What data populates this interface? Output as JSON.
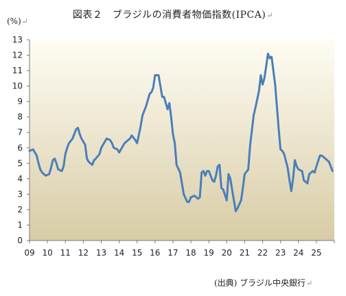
{
  "title": "図表２　ブラジルの消費者物価指数(IPCA)",
  "unit_label": "(%)",
  "source": "(出典) ブラジル中央銀行",
  "return_mark": "↵",
  "colors": {
    "line": "#4a7ebb",
    "bg_top": "#fffdf4",
    "bg_bottom": "#d8cca6",
    "axis": "#777777"
  },
  "chart_data": {
    "type": "line",
    "title": "図表２　ブラジルの消費者物価指数(IPCA)",
    "xlabel": "",
    "ylabel": "(%)",
    "ylim": [
      0,
      13
    ],
    "xlim": [
      2009.0,
      2026.0
    ],
    "yticks": [
      0,
      1,
      2,
      3,
      4,
      5,
      6,
      7,
      8,
      9,
      10,
      11,
      12,
      13
    ],
    "xtick_labels": [
      "09",
      "10",
      "11",
      "12",
      "13",
      "14",
      "15",
      "16",
      "17",
      "18",
      "19",
      "20",
      "21",
      "22",
      "23",
      "24",
      "25"
    ],
    "grid": false,
    "series": [
      {
        "name": "",
        "x": [
          2009.0,
          2009.2,
          2009.4,
          2009.5,
          2009.6,
          2009.7,
          2009.9,
          2010.1,
          2010.2,
          2010.3,
          2010.4,
          2010.5,
          2010.6,
          2010.8,
          2010.9,
          2011.0,
          2011.1,
          2011.2,
          2011.4,
          2011.6,
          2011.7,
          2011.8,
          2011.9,
          2012.1,
          2012.2,
          2012.3,
          2012.5,
          2012.6,
          2012.7,
          2012.9,
          2013.0,
          2013.2,
          2013.3,
          2013.5,
          2013.6,
          2013.7,
          2013.9,
          2014.0,
          2014.1,
          2014.3,
          2014.5,
          2014.6,
          2014.7,
          2014.9,
          2015.0,
          2015.2,
          2015.3,
          2015.5,
          2015.7,
          2015.8,
          2015.9,
          2016.0,
          2016.2,
          2016.4,
          2016.5,
          2016.7,
          2016.8,
          2016.9,
          2017.0,
          2017.1,
          2017.2,
          2017.4,
          2017.5,
          2017.6,
          2017.8,
          2017.9,
          2018.0,
          2018.2,
          2018.3,
          2018.4,
          2018.5,
          2018.6,
          2018.7,
          2018.8,
          2018.9,
          2019.0,
          2019.2,
          2019.3,
          2019.4,
          2019.5,
          2019.6,
          2019.7,
          2019.8,
          2020.0,
          2020.1,
          2020.2,
          2020.3,
          2020.5,
          2020.6,
          2020.8,
          2020.9,
          2021.0,
          2021.2,
          2021.3,
          2021.5,
          2021.6,
          2021.8,
          2021.9,
          2022.0,
          2022.1,
          2022.2,
          2022.3,
          2022.4,
          2022.5,
          2022.7,
          2022.9,
          2023.0,
          2023.1,
          2023.2,
          2023.4,
          2023.5,
          2023.6,
          2023.7,
          2023.8,
          2023.9,
          2024.0,
          2024.2,
          2024.3,
          2024.5,
          2024.6,
          2024.8,
          2024.9,
          2025.0,
          2025.2,
          2025.3,
          2025.5,
          2025.6,
          2025.7,
          2025.9
        ],
        "y": [
          5.8,
          5.9,
          5.5,
          5.0,
          4.6,
          4.4,
          4.2,
          4.3,
          4.7,
          5.2,
          5.3,
          5.0,
          4.6,
          4.5,
          4.8,
          5.6,
          6.0,
          6.3,
          6.6,
          7.2,
          7.3,
          6.9,
          6.6,
          6.2,
          5.3,
          5.1,
          4.9,
          5.2,
          5.3,
          5.6,
          6.0,
          6.4,
          6.6,
          6.5,
          6.3,
          6.0,
          5.9,
          5.7,
          5.9,
          6.3,
          6.5,
          6.6,
          6.8,
          6.5,
          6.3,
          7.4,
          8.1,
          8.7,
          9.5,
          9.6,
          9.9,
          10.7,
          10.7,
          9.3,
          9.3,
          8.5,
          8.9,
          8.0,
          6.9,
          6.3,
          4.9,
          4.4,
          3.7,
          3.0,
          2.5,
          2.5,
          2.8,
          2.9,
          2.8,
          2.7,
          2.8,
          4.4,
          4.5,
          4.2,
          4.5,
          4.5,
          3.9,
          3.8,
          4.2,
          4.8,
          4.9,
          3.4,
          3.3,
          2.6,
          4.3,
          4.0,
          3.3,
          1.9,
          2.1,
          2.6,
          3.4,
          4.3,
          4.6,
          6.1,
          8.1,
          8.6,
          9.7,
          10.7,
          10.1,
          10.5,
          11.3,
          12.1,
          11.8,
          11.9,
          10.1,
          7.2,
          5.9,
          5.8,
          5.6,
          4.7,
          3.9,
          3.2,
          4.0,
          5.2,
          4.8,
          4.6,
          4.5,
          3.9,
          3.7,
          4.3,
          4.5,
          4.4,
          4.8,
          5.5,
          5.5,
          5.3,
          5.2,
          5.1,
          4.5
        ]
      }
    ]
  }
}
